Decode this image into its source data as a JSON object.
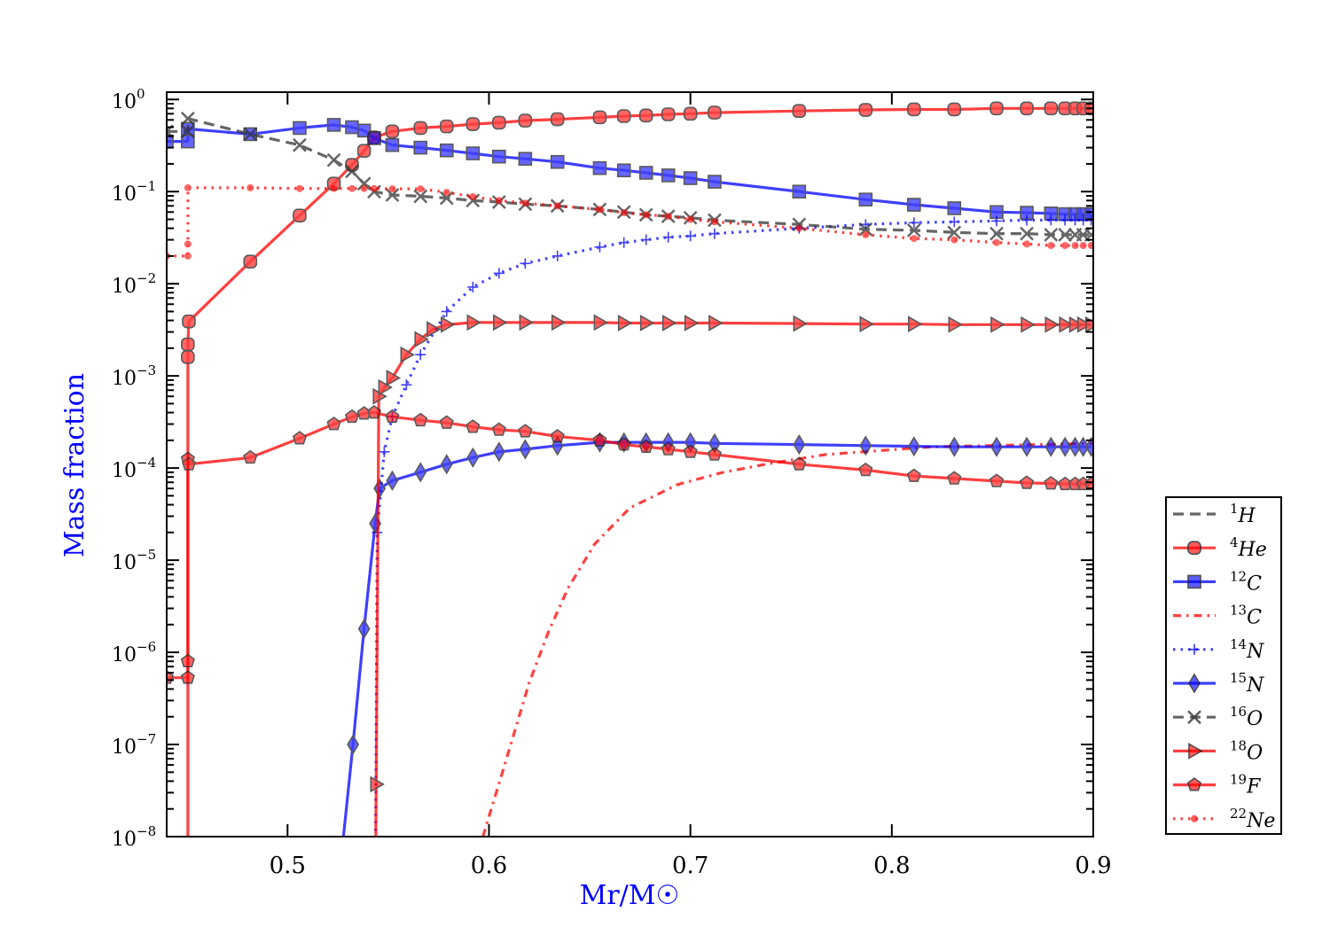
{
  "chart_data": {
    "type": "line",
    "xlabel": "Mr/M☉",
    "ylabel": "Mass fraction",
    "xlim": [
      0.44,
      0.9
    ],
    "ylim": [
      1e-08,
      1.2
    ],
    "yscale": "log",
    "grid": false,
    "legend_position": "outside-right-bottom",
    "label_color": "#0000ff",
    "x_ticks": [
      0.5,
      0.6,
      0.7,
      0.8,
      0.9
    ],
    "x_tick_labels": [
      "0.5",
      "0.6",
      "0.7",
      "0.8",
      "0.9"
    ],
    "y_ticks": [
      1e-08,
      1e-07,
      1e-06,
      1e-05,
      0.0001,
      0.001,
      0.01,
      0.1,
      1
    ],
    "y_tick_labels": [
      {
        "base": "10",
        "exp": "−8"
      },
      {
        "base": "10",
        "exp": "−7"
      },
      {
        "base": "10",
        "exp": "−6"
      },
      {
        "base": "10",
        "exp": "−5"
      },
      {
        "base": "10",
        "exp": "−4"
      },
      {
        "base": "10",
        "exp": "−3"
      },
      {
        "base": "10",
        "exp": "−2"
      },
      {
        "base": "10",
        "exp": "−1"
      },
      {
        "base": "10",
        "exp": "0"
      }
    ],
    "series": [
      {
        "mass": "1",
        "symbol": "H",
        "color": "#333333",
        "dash": "dashed",
        "marker": "none",
        "x": [],
        "y": []
      },
      {
        "mass": "4",
        "symbol": "He",
        "color": "#ff0000",
        "dash": "solid",
        "marker": "circle",
        "x": [
          0.4505,
          0.4505,
          0.4505,
          0.451,
          0.4815,
          0.506,
          0.523,
          0.532,
          0.538,
          0.543,
          0.552,
          0.566,
          0.579,
          0.592,
          0.605,
          0.618,
          0.634,
          0.655,
          0.667,
          0.678,
          0.689,
          0.7,
          0.712,
          0.754,
          0.787,
          0.811,
          0.831,
          0.852,
          0.867,
          0.879,
          0.886,
          0.891,
          0.895,
          0.899
        ],
        "y": [
          1e-09,
          0.0016,
          0.0022,
          0.0039,
          0.0174,
          0.055,
          0.122,
          0.195,
          0.277,
          0.387,
          0.45,
          0.49,
          0.51,
          0.54,
          0.56,
          0.59,
          0.61,
          0.64,
          0.66,
          0.67,
          0.69,
          0.7,
          0.72,
          0.75,
          0.77,
          0.78,
          0.78,
          0.8,
          0.8,
          0.8,
          0.8,
          0.8,
          0.8,
          0.8
        ]
      },
      {
        "mass": "12",
        "symbol": "C",
        "color": "#0000ff",
        "dash": "solid",
        "marker": "square",
        "x": [
          0.44,
          0.4505,
          0.4505,
          0.4815,
          0.506,
          0.523,
          0.532,
          0.538,
          0.543,
          0.552,
          0.566,
          0.579,
          0.592,
          0.605,
          0.618,
          0.634,
          0.655,
          0.667,
          0.678,
          0.689,
          0.7,
          0.712,
          0.754,
          0.787,
          0.811,
          0.831,
          0.852,
          0.867,
          0.879,
          0.886,
          0.891,
          0.895,
          0.899
        ],
        "y": [
          0.35,
          0.35,
          0.48,
          0.42,
          0.49,
          0.53,
          0.5,
          0.46,
          0.38,
          0.32,
          0.3,
          0.28,
          0.26,
          0.24,
          0.227,
          0.21,
          0.18,
          0.17,
          0.16,
          0.15,
          0.14,
          0.128,
          0.1,
          0.082,
          0.072,
          0.066,
          0.06,
          0.059,
          0.058,
          0.057,
          0.057,
          0.057,
          0.057
        ]
      },
      {
        "mass": "13",
        "symbol": "C",
        "color": "#ff0000",
        "dash": "dashdot",
        "marker": "none",
        "x": [
          0.597,
          0.5998,
          0.6055,
          0.613,
          0.62,
          0.6297,
          0.6393,
          0.6525,
          0.67,
          0.6934,
          0.7154,
          0.7374,
          0.767,
          0.8196,
          0.9
        ],
        "y": [
          1e-08,
          1.6e-08,
          4.1e-08,
          1.45e-07,
          4.7e-07,
          1.7e-06,
          5e-06,
          1.5e-05,
          3.7e-05,
          6.6e-05,
          8.9e-05,
          0.00011,
          0.00014,
          0.00017,
          0.000185
        ]
      },
      {
        "mass": "14",
        "symbol": "N",
        "color": "#0000ff",
        "dash": "dotted",
        "marker": "plus",
        "x": [
          0.5435,
          0.5445,
          0.548,
          0.552,
          0.559,
          0.566,
          0.579,
          0.592,
          0.605,
          0.618,
          0.634,
          0.655,
          0.667,
          0.678,
          0.689,
          0.7,
          0.712,
          0.754,
          0.787,
          0.811,
          0.831,
          0.852,
          0.867,
          0.879,
          0.886,
          0.891,
          0.895,
          0.899
        ],
        "y": [
          1e-09,
          2e-05,
          0.00015,
          0.00036,
          0.0008,
          0.0017,
          0.005,
          0.0092,
          0.013,
          0.0166,
          0.02,
          0.025,
          0.028,
          0.03,
          0.032,
          0.033,
          0.035,
          0.04,
          0.044,
          0.046,
          0.047,
          0.048,
          0.049,
          0.049,
          0.049,
          0.049,
          0.049,
          0.049
        ]
      },
      {
        "mass": "15",
        "symbol": "N",
        "color": "#0000ff",
        "dash": "solid",
        "marker": "diamond",
        "x": [
          0.523,
          0.5325,
          0.538,
          0.5435,
          0.5457,
          0.552,
          0.566,
          0.579,
          0.592,
          0.605,
          0.618,
          0.634,
          0.655,
          0.667,
          0.678,
          0.689,
          0.7,
          0.712,
          0.754,
          0.787,
          0.811,
          0.831,
          0.852,
          0.867,
          0.879,
          0.886,
          0.891,
          0.895,
          0.899
        ],
        "y": [
          1e-09,
          1e-07,
          1.8e-06,
          2.5e-05,
          6e-05,
          7.3e-05,
          9e-05,
          0.00011,
          0.00013,
          0.00015,
          0.00016,
          0.000175,
          0.00019,
          0.00019,
          0.00019,
          0.00019,
          0.00019,
          0.000185,
          0.00018,
          0.000175,
          0.000172,
          0.00017,
          0.00017,
          0.00017,
          0.00017,
          0.00017,
          0.00017,
          0.00017,
          0.00017
        ]
      },
      {
        "mass": "16",
        "symbol": "O",
        "color": "#333333",
        "dash": "dashed",
        "marker": "x",
        "x": [
          0.44,
          0.4505,
          0.4505,
          0.4815,
          0.506,
          0.523,
          0.532,
          0.538,
          0.543,
          0.552,
          0.566,
          0.579,
          0.592,
          0.605,
          0.618,
          0.634,
          0.655,
          0.667,
          0.678,
          0.689,
          0.7,
          0.712,
          0.754,
          0.787,
          0.811,
          0.831,
          0.852,
          0.867,
          0.879,
          0.886,
          0.891,
          0.895,
          0.899
        ],
        "y": [
          0.45,
          0.45,
          0.62,
          0.42,
          0.32,
          0.22,
          0.166,
          0.122,
          0.1,
          0.092,
          0.089,
          0.085,
          0.08,
          0.077,
          0.073,
          0.07,
          0.064,
          0.06,
          0.056,
          0.054,
          0.052,
          0.049,
          0.044,
          0.039,
          0.038,
          0.036,
          0.035,
          0.035,
          0.034,
          0.034,
          0.034,
          0.034,
          0.034
        ]
      },
      {
        "mass": "18",
        "symbol": "O",
        "color": "#ff0000",
        "dash": "solid",
        "marker": "triangle",
        "x": [
          0.5435,
          0.544,
          0.5453,
          0.548,
          0.552,
          0.559,
          0.566,
          0.572,
          0.579,
          0.592,
          0.605,
          0.618,
          0.634,
          0.655,
          0.667,
          0.678,
          0.689,
          0.7,
          0.712,
          0.754,
          0.787,
          0.811,
          0.831,
          0.852,
          0.867,
          0.879,
          0.886,
          0.891,
          0.895,
          0.899
        ],
        "y": [
          1e-09,
          3.7e-08,
          0.0006,
          0.00075,
          0.00095,
          0.0017,
          0.0025,
          0.0032,
          0.0036,
          0.0038,
          0.0038,
          0.0038,
          0.0038,
          0.0038,
          0.00375,
          0.00375,
          0.00375,
          0.00375,
          0.00375,
          0.0037,
          0.00365,
          0.00365,
          0.0036,
          0.0036,
          0.0036,
          0.0036,
          0.0036,
          0.0036,
          0.0036,
          0.0036
        ]
      },
      {
        "mass": "19",
        "symbol": "F",
        "color": "#ff0000",
        "dash": "solid",
        "marker": "pentagon",
        "x": [
          0.44,
          0.4505,
          0.4505,
          0.4505,
          0.451,
          0.4815,
          0.506,
          0.523,
          0.532,
          0.538,
          0.543,
          0.552,
          0.566,
          0.579,
          0.592,
          0.605,
          0.618,
          0.634,
          0.655,
          0.667,
          0.678,
          0.689,
          0.7,
          0.712,
          0.754,
          0.787,
          0.811,
          0.831,
          0.852,
          0.867,
          0.879,
          0.886,
          0.891,
          0.895,
          0.899
        ],
        "y": [
          5.3e-07,
          5.3e-07,
          8e-07,
          0.000125,
          0.00011,
          0.00013,
          0.00021,
          0.0003,
          0.00036,
          0.00039,
          0.0004,
          0.00036,
          0.00033,
          0.00031,
          0.00028,
          0.00026,
          0.00025,
          0.00022,
          0.0002,
          0.00018,
          0.00017,
          0.00016,
          0.00015,
          0.00014,
          0.00011,
          9.5e-05,
          8.2e-05,
          7.7e-05,
          7.2e-05,
          6.9e-05,
          6.8e-05,
          6.7e-05,
          6.7e-05,
          6.7e-05,
          6.7e-05
        ]
      },
      {
        "mass": "22",
        "symbol": "Ne",
        "color": "#ff0000",
        "dash": "dotted",
        "marker": "dot",
        "x": [
          0.44,
          0.4505,
          0.4505,
          0.4505,
          0.4815,
          0.506,
          0.523,
          0.532,
          0.538,
          0.543,
          0.552,
          0.566,
          0.579,
          0.592,
          0.605,
          0.618,
          0.634,
          0.655,
          0.667,
          0.678,
          0.689,
          0.7,
          0.712,
          0.754,
          0.787,
          0.811,
          0.831,
          0.852,
          0.867,
          0.879,
          0.886,
          0.891,
          0.895,
          0.899
        ],
        "y": [
          0.02,
          0.02,
          0.027,
          0.11,
          0.11,
          0.108,
          0.108,
          0.108,
          0.108,
          0.108,
          0.107,
          0.107,
          0.098,
          0.088,
          0.08,
          0.075,
          0.07,
          0.064,
          0.059,
          0.056,
          0.054,
          0.05,
          0.047,
          0.04,
          0.034,
          0.031,
          0.03,
          0.028,
          0.027,
          0.026,
          0.026,
          0.026,
          0.026,
          0.026
        ]
      }
    ]
  }
}
